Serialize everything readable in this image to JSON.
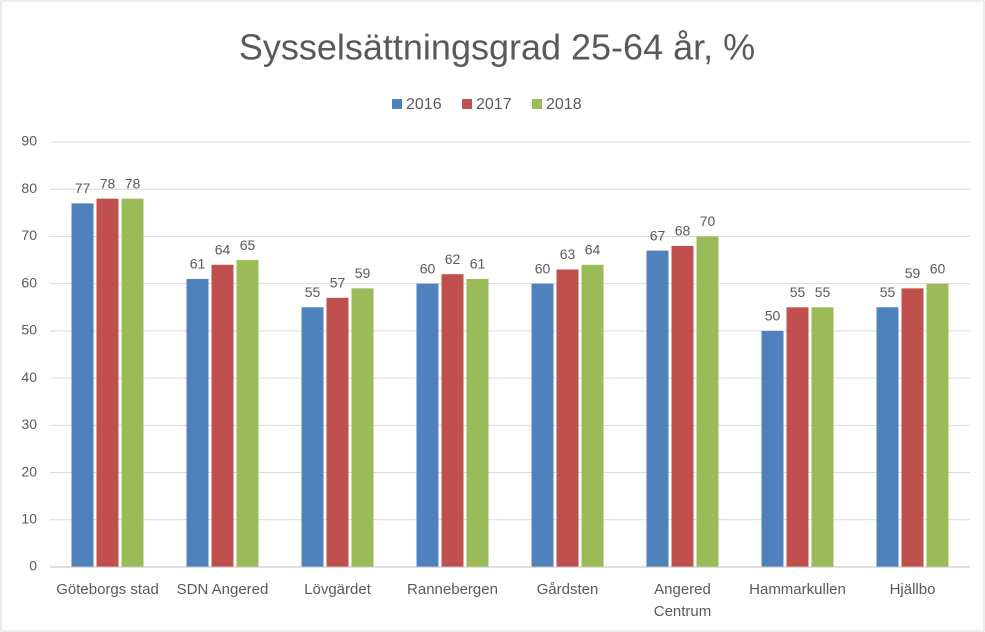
{
  "chart_data": {
    "type": "bar",
    "title": "Sysselsättningsgrad 25-64 år, %",
    "categories": [
      "Göteborgs stad",
      "SDN Angered",
      "Lövgärdet",
      "Rannebergen",
      "Gårdsten",
      "Angered Centrum",
      "Hammarkullen",
      "Hjällbo"
    ],
    "series": [
      {
        "name": "2016",
        "color": "#4f81bd",
        "values": [
          77,
          61,
          55,
          60,
          60,
          67,
          50,
          55
        ]
      },
      {
        "name": "2017",
        "color": "#c0504d",
        "values": [
          78,
          64,
          57,
          62,
          63,
          68,
          55,
          59
        ]
      },
      {
        "name": "2018",
        "color": "#9bbb59",
        "values": [
          78,
          65,
          59,
          61,
          64,
          70,
          55,
          60
        ]
      }
    ],
    "ylim": [
      0,
      90
    ],
    "yticks": [
      0,
      10,
      20,
      30,
      40,
      50,
      60,
      70,
      80,
      90
    ],
    "grid": true,
    "legend": "top"
  }
}
